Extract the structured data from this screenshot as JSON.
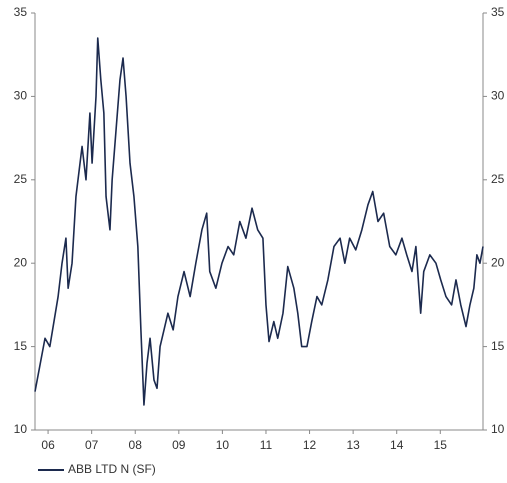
{
  "chart_data": {
    "type": "line",
    "x": [
      2006.2,
      2006.43,
      2006.54,
      2006.73,
      2006.82,
      2006.91,
      2006.96,
      2007.05,
      2007.14,
      2007.28,
      2007.37,
      2007.46,
      2007.51,
      2007.6,
      2007.64,
      2007.71,
      2007.78,
      2007.83,
      2007.92,
      2007.97,
      2008.06,
      2008.15,
      2008.22,
      2008.29,
      2008.38,
      2008.47,
      2008.56,
      2008.63,
      2008.7,
      2008.77,
      2008.84,
      2008.93,
      2009.0,
      2009.07,
      2009.16,
      2009.25,
      2009.37,
      2009.48,
      2009.62,
      2009.76,
      2009.89,
      2010.03,
      2010.14,
      2010.21,
      2010.35,
      2010.49,
      2010.63,
      2010.76,
      2010.9,
      2011.04,
      2011.18,
      2011.31,
      2011.43,
      2011.5,
      2011.57,
      2011.68,
      2011.77,
      2011.89,
      2012.0,
      2012.14,
      2012.23,
      2012.32,
      2012.44,
      2012.55,
      2012.67,
      2012.78,
      2012.92,
      2013.06,
      2013.2,
      2013.31,
      2013.42,
      2013.56,
      2013.7,
      2013.84,
      2013.95,
      2014.07,
      2014.2,
      2014.34,
      2014.48,
      2014.62,
      2014.73,
      2014.85,
      2014.94,
      2015.05,
      2015.12,
      2015.26,
      2015.4,
      2015.51,
      2015.63,
      2015.76,
      2015.86,
      2015.97,
      2016.09,
      2016.18,
      2016.27,
      2016.34,
      2016.41,
      2016.48
    ],
    "series": [
      {
        "name": "ABB LTD N (SF)",
        "color": "#1c2a4e",
        "values": [
          12.3,
          15.5,
          15.0,
          18.0,
          20.0,
          21.5,
          18.5,
          20.0,
          24.0,
          27.0,
          25.0,
          29.0,
          26.0,
          30.0,
          33.5,
          31.0,
          29.0,
          24.0,
          22.0,
          25.0,
          28.0,
          31.0,
          32.3,
          30.0,
          26.0,
          24.0,
          21.0,
          16.0,
          11.5,
          14.0,
          15.5,
          13.0,
          12.5,
          15.0,
          16.0,
          17.0,
          16.0,
          18.0,
          19.5,
          18.0,
          20.0,
          22.0,
          23.0,
          19.5,
          18.5,
          20.0,
          21.0,
          20.5,
          22.5,
          21.5,
          23.3,
          22.0,
          21.5,
          17.5,
          15.3,
          16.5,
          15.5,
          17.0,
          19.8,
          18.5,
          17.0,
          15.0,
          15.0,
          16.5,
          18.0,
          17.5,
          19.0,
          21.0,
          21.5,
          20.0,
          21.5,
          20.8,
          22.0,
          23.5,
          24.3,
          22.5,
          23.0,
          21.0,
          20.5,
          21.5,
          20.5,
          19.5,
          21.0,
          17.0,
          19.5,
          20.5,
          20.0,
          19.0,
          18.0,
          17.5,
          19.0,
          17.5,
          16.2,
          17.5,
          18.5,
          20.5,
          20.0,
          21.0
        ]
      }
    ],
    "xlim": [
      2006.2,
      2016.48
    ],
    "xticks": [
      {
        "value": 2006.5,
        "label": "06"
      },
      {
        "value": 2007.5,
        "label": "07"
      },
      {
        "value": 2008.5,
        "label": "08"
      },
      {
        "value": 2009.5,
        "label": "09"
      },
      {
        "value": 2010.5,
        "label": "10"
      },
      {
        "value": 2011.5,
        "label": "11"
      },
      {
        "value": 2012.5,
        "label": "12"
      },
      {
        "value": 2013.5,
        "label": "13"
      },
      {
        "value": 2014.5,
        "label": "14"
      },
      {
        "value": 2015.5,
        "label": "15"
      }
    ],
    "ylim": [
      10,
      35
    ],
    "yticks": [
      10,
      15,
      20,
      25,
      30,
      35
    ],
    "legend": "bottom-left"
  }
}
